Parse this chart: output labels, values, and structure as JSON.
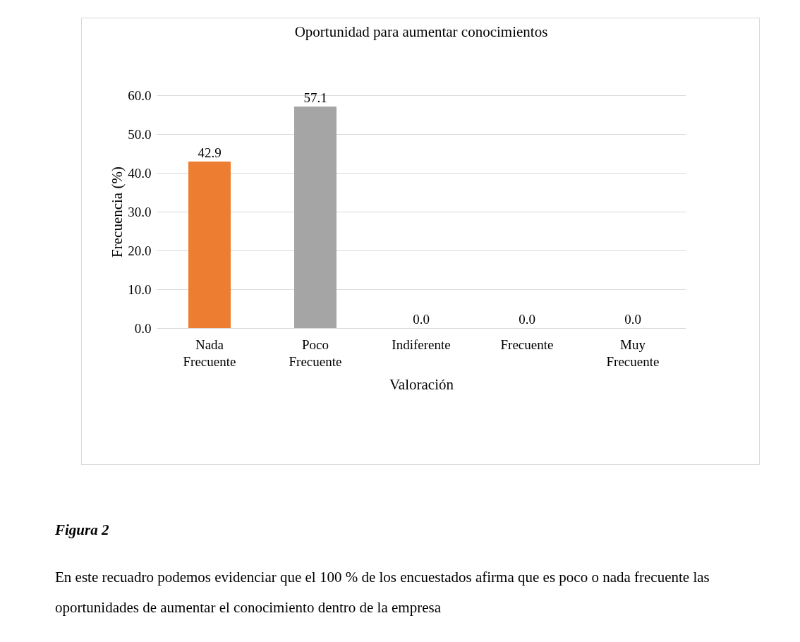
{
  "chart_data": {
    "type": "bar",
    "title": "Oportunidad para aumentar conocimientos",
    "xlabel": "Valoración",
    "ylabel": "Frecuencia (%)",
    "categories": [
      "Nada Frecuente",
      "Poco Frecuente",
      "Indiferente",
      "Frecuente",
      "Muy Frecuente"
    ],
    "values": [
      42.9,
      57.1,
      0,
      0,
      0
    ],
    "colors": [
      "#ed7d31",
      "#a5a5a5",
      "#c59a00",
      "#41719c",
      "#548235"
    ],
    "value_labels": [
      "42.9",
      "57.1",
      "0.0",
      "0.0",
      "0.0"
    ],
    "ylim": [
      0,
      60
    ],
    "yticks": [
      {
        "value": 0,
        "label": "0.0"
      },
      {
        "value": 10,
        "label": "10.0"
      },
      {
        "value": 20,
        "label": "20.0"
      },
      {
        "value": 30,
        "label": "30.0"
      },
      {
        "value": 40,
        "label": "40.0"
      },
      {
        "value": 50,
        "label": "50.0"
      },
      {
        "value": 60,
        "label": "60.0"
      }
    ],
    "grid": true,
    "annotations": [
      "Figura 2",
      "En este recuadro podemos evidenciar que el 100 % de los encuestados afirma que es poco o nada frecuente las oportunidades de aumentar el conocimiento dentro de la empresa"
    ]
  }
}
